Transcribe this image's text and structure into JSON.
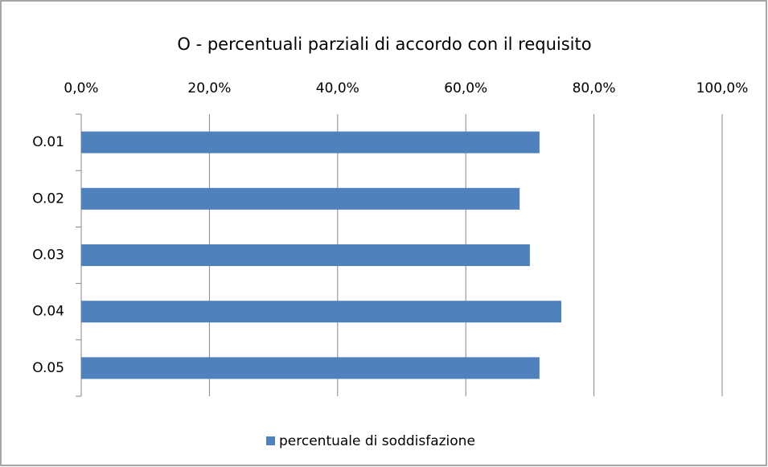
{
  "chart_data": {
    "type": "bar",
    "orientation": "horizontal",
    "title": "O - percentuali parziali di accordo con il requisito",
    "categories": [
      "O.01",
      "O.02",
      "O.03",
      "O.04",
      "O.05"
    ],
    "series": [
      {
        "name": "percentuale di soddisfazione",
        "color": "#4f81bd",
        "values": [
          71.5,
          68.4,
          70.0,
          74.9,
          71.5
        ]
      }
    ],
    "xlim": [
      0,
      100
    ],
    "xticks": [
      {
        "value": 0,
        "label": "0,0%"
      },
      {
        "value": 20,
        "label": "20,0%"
      },
      {
        "value": 40,
        "label": "40,0%"
      },
      {
        "value": 60,
        "label": "60,0%"
      },
      {
        "value": 80,
        "label": "80,0%"
      },
      {
        "value": 100,
        "label": "100,0%"
      }
    ],
    "grid": true,
    "legend": "bottom"
  }
}
